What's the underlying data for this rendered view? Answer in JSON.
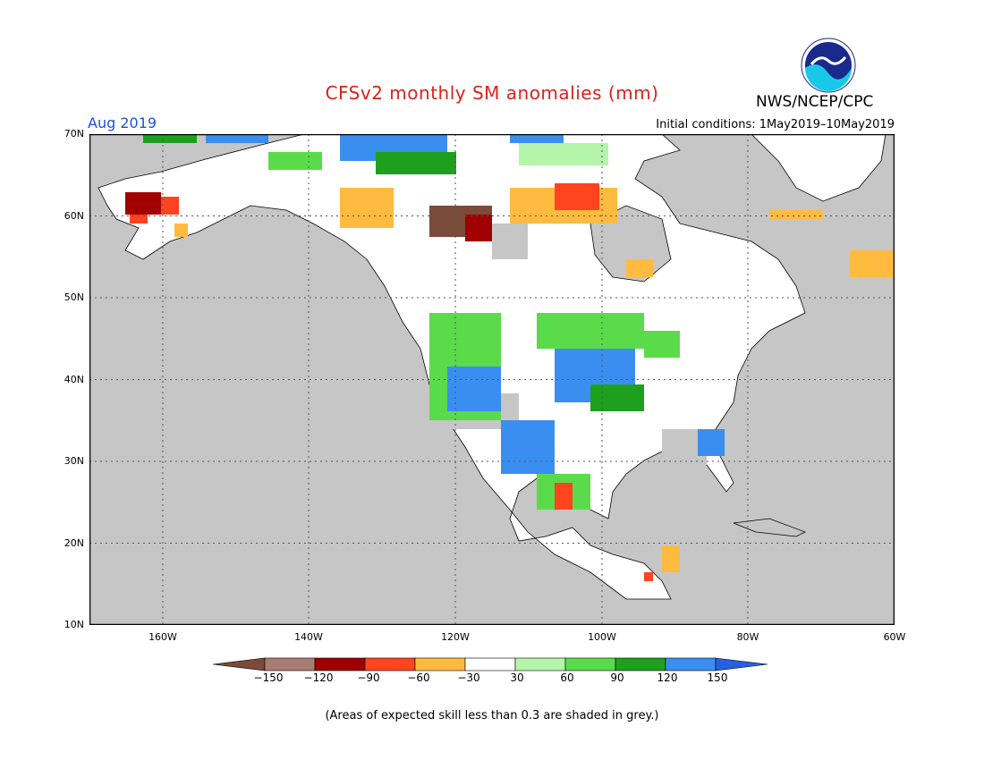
{
  "header": {
    "title": "CFSv2 monthly SM anomalies (mm)",
    "agency": "NWS/NCEP/CPC",
    "month": "Aug 2019",
    "initial_conditions": "Initial conditions: 1May2019–10May2019",
    "logo_text": "NOAA"
  },
  "axes": {
    "lat_labels": [
      "70N",
      "60N",
      "50N",
      "40N",
      "30N",
      "20N",
      "10N"
    ],
    "lon_labels": [
      "160W",
      "140W",
      "120W",
      "100W",
      "80W",
      "60W"
    ]
  },
  "colorbar": {
    "labels": [
      "−150",
      "−120",
      "−90",
      "−60",
      "−30",
      "30",
      "60",
      "90",
      "120",
      "150"
    ],
    "colors": [
      "#7b4a3a",
      "#a87e74",
      "#a00000",
      "#ff4420",
      "#ffbb40",
      "#ffffff",
      "#b4f5aa",
      "#5adc4a",
      "#1ea01e",
      "#3a8ef0",
      "#2560e0"
    ]
  },
  "footnote": "(Areas of expected skill less than 0.3 are shaded in grey.)",
  "colors": {
    "ocean": "#c6c6c6",
    "land_lowskill": "#c6c6c6",
    "title": "#e0201c",
    "month": "#1f4fe0"
  }
}
